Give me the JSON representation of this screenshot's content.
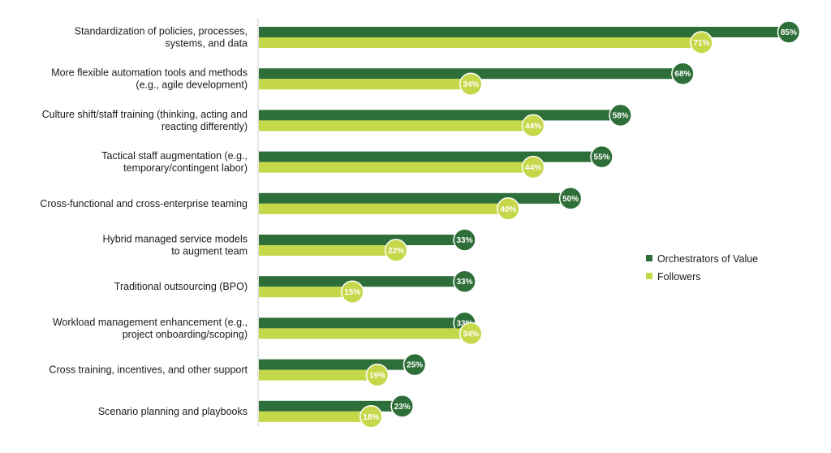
{
  "chart_data": {
    "type": "bar",
    "orientation": "horizontal",
    "categories": [
      [
        "Standardization of policies, processes,",
        "systems, and data"
      ],
      [
        "More flexible automation tools and methods",
        "(e.g., agile development)"
      ],
      [
        "Culture shift/staff training (thinking, acting and",
        "reacting differently)"
      ],
      [
        "Tactical staff augmentation (e.g.,",
        "temporary/contingent labor)"
      ],
      [
        "Cross-functional and cross-enterprise teaming"
      ],
      [
        "Hybrid managed service models",
        "to augment team"
      ],
      [
        "Traditional outsourcing (BPO)"
      ],
      [
        "Workload management enhancement (e.g.,",
        "project onboarding/scoping)"
      ],
      [
        "Cross training, incentives, and other support"
      ],
      [
        "Scenario planning and playbooks"
      ]
    ],
    "series": [
      {
        "name": "Orchestrators of Value",
        "color": "#2e6e38",
        "label_color": "#ffffff",
        "values": [
          85,
          68,
          58,
          55,
          50,
          33,
          33,
          33,
          25,
          23
        ]
      },
      {
        "name": "Followers",
        "color": "#c5d84a",
        "label_color": "#ffffff",
        "values": [
          71,
          34,
          44,
          44,
          40,
          22,
          15,
          34,
          19,
          18
        ]
      }
    ],
    "value_suffix": "%",
    "xlim": [
      0,
      100
    ],
    "grid": false,
    "legend_position": "right"
  }
}
